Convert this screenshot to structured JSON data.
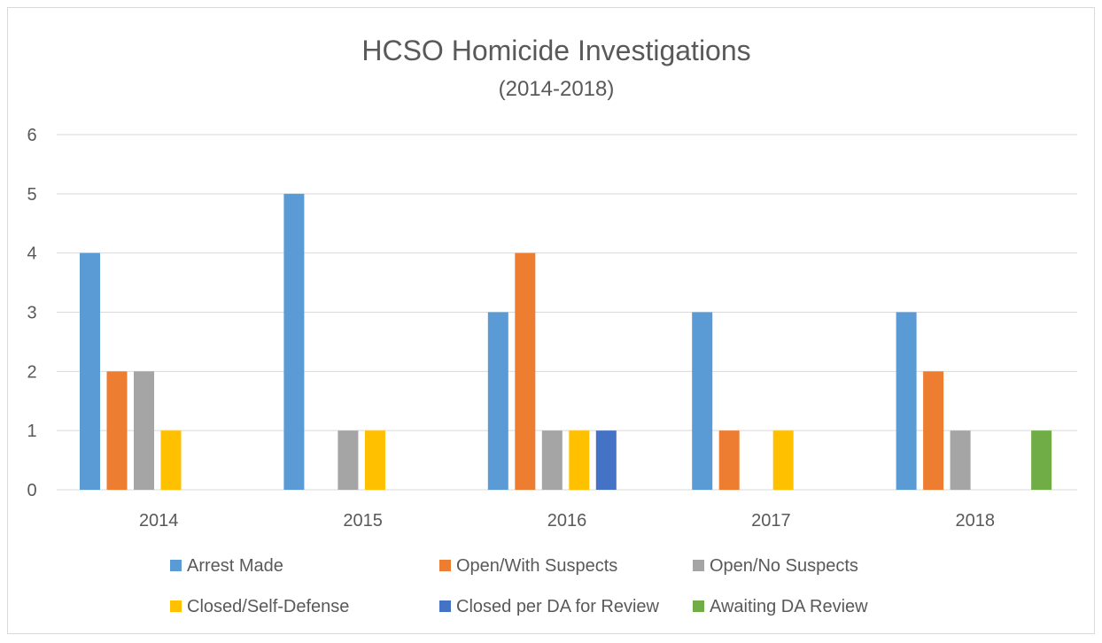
{
  "chart_data": {
    "type": "bar",
    "title": "HCSO Homicide Investigations",
    "subtitle": "(2014-2018)",
    "categories": [
      "2014",
      "2015",
      "2016",
      "2017",
      "2018"
    ],
    "ylim": [
      0,
      6
    ],
    "yticks": [
      "0",
      "1",
      "2",
      "3",
      "4",
      "5",
      "6"
    ],
    "grid": true,
    "legend_position": "bottom",
    "series": [
      {
        "name": "Arrest Made",
        "color": "#5b9bd5",
        "values": [
          4,
          5,
          3,
          3,
          3
        ]
      },
      {
        "name": "Open/With Suspects",
        "color": "#ed7d31",
        "values": [
          2,
          0,
          4,
          1,
          2
        ]
      },
      {
        "name": "Open/No Suspects",
        "color": "#a5a5a5",
        "values": [
          2,
          1,
          1,
          0,
          1
        ]
      },
      {
        "name": "Closed/Self-Defense",
        "color": "#ffc000",
        "values": [
          1,
          1,
          1,
          1,
          0
        ]
      },
      {
        "name": "Closed per DA for Review",
        "color": "#4472c4",
        "values": [
          0,
          0,
          1,
          0,
          0
        ]
      },
      {
        "name": "Awaiting DA Review",
        "color": "#70ad47",
        "values": [
          0,
          0,
          0,
          0,
          1
        ]
      }
    ]
  }
}
